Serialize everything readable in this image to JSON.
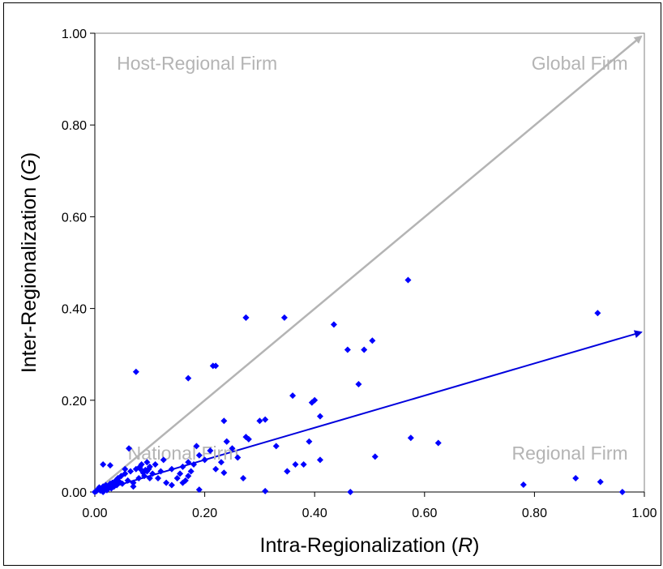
{
  "chart_data": {
    "type": "scatter",
    "title": "",
    "xlabel": {
      "prefix": "Intra-Regionalization (",
      "symbol": "R",
      "suffix": ")"
    },
    "ylabel": {
      "prefix": "Inter-Regionalization (",
      "symbol": "G",
      "suffix": ")"
    },
    "xlim": [
      0,
      1
    ],
    "ylim": [
      0,
      1
    ],
    "xticks": [
      "0.00",
      "0.20",
      "0.40",
      "0.60",
      "0.80",
      "1.00"
    ],
    "yticks": [
      "0.00",
      "0.20",
      "0.40",
      "0.60",
      "0.80",
      "1.00"
    ],
    "grid": false,
    "region_labels": {
      "host_regional": {
        "text": "Host-Regional Firm",
        "x": 0.04,
        "y": 0.935
      },
      "global": {
        "text": "Global Firm",
        "x": 0.97,
        "y": 0.935
      },
      "national": {
        "text": "National Firm",
        "x": 0.06,
        "y": 0.085
      },
      "regional": {
        "text": "Regional Firm",
        "x": 0.97,
        "y": 0.085
      }
    },
    "arrows": [
      {
        "name": "diagonal",
        "from": [
          0,
          0
        ],
        "to": [
          1,
          1
        ],
        "color": "#b4b4b4"
      },
      {
        "name": "trend",
        "from": [
          0,
          0
        ],
        "to": [
          1,
          0.35
        ],
        "color": "#0000dd"
      }
    ],
    "marker_color": "#0000ff",
    "series": [
      {
        "x": [
          0.0,
          0.003,
          0.005,
          0.008,
          0.01,
          0.012,
          0.015,
          0.018,
          0.02,
          0.022,
          0.025,
          0.028,
          0.03,
          0.032,
          0.035,
          0.038,
          0.04,
          0.042,
          0.045,
          0.048,
          0.05,
          0.055,
          0.06,
          0.065,
          0.07,
          0.075,
          0.08,
          0.082,
          0.085,
          0.088,
          0.09,
          0.092,
          0.095,
          0.098,
          0.1,
          0.105,
          0.11,
          0.115,
          0.12,
          0.125,
          0.13,
          0.14,
          0.15,
          0.155,
          0.16,
          0.165,
          0.17,
          0.175,
          0.18,
          0.185,
          0.19,
          0.2,
          0.21,
          0.22,
          0.23,
          0.24,
          0.25,
          0.26,
          0.27,
          0.275,
          0.28,
          0.3,
          0.31,
          0.33,
          0.35,
          0.36,
          0.38,
          0.39,
          0.4,
          0.41,
          0.435,
          0.46,
          0.48,
          0.49,
          0.505,
          0.51,
          0.57,
          0.575,
          0.625,
          0.78,
          0.875,
          0.915,
          0.92,
          0.96,
          0.015,
          0.028,
          0.055,
          0.062,
          0.075,
          0.083,
          0.095,
          0.17,
          0.215,
          0.22,
          0.235,
          0.235,
          0.275,
          0.275,
          0.345,
          0.35,
          0.365,
          0.395,
          0.41,
          0.015,
          0.04,
          0.07,
          0.1,
          0.14,
          0.16,
          0.17,
          0.19,
          0.24,
          0.31,
          0.465
        ],
        "y": [
          0.0,
          0.002,
          0.005,
          0.01,
          0.003,
          0.008,
          0.012,
          0.006,
          0.015,
          0.004,
          0.01,
          0.018,
          0.008,
          0.02,
          0.012,
          0.025,
          0.015,
          0.03,
          0.022,
          0.035,
          0.018,
          0.04,
          0.025,
          0.045,
          0.02,
          0.05,
          0.03,
          0.055,
          0.06,
          0.042,
          0.035,
          0.048,
          0.065,
          0.05,
          0.055,
          0.04,
          0.06,
          0.03,
          0.045,
          0.07,
          0.02,
          0.05,
          0.03,
          0.04,
          0.055,
          0.025,
          0.035,
          0.045,
          0.06,
          0.1,
          0.08,
          0.07,
          0.09,
          0.05,
          0.065,
          0.11,
          0.095,
          0.075,
          0.03,
          0.12,
          0.115,
          0.155,
          0.002,
          0.1,
          0.045,
          0.21,
          0.06,
          0.11,
          0.2,
          0.07,
          0.365,
          0.31,
          0.235,
          0.31,
          0.33,
          0.077,
          0.462,
          0.118,
          0.107,
          0.016,
          0.03,
          0.39,
          0.022,
          0.0,
          0.06,
          0.058,
          0.05,
          0.095,
          0.262,
          0.05,
          0.045,
          0.248,
          0.275,
          0.275,
          0.155,
          0.042,
          0.38,
          0.38,
          0.38,
          0.045,
          0.06,
          0.195,
          0.165,
          0.0,
          0.02,
          0.012,
          0.03,
          0.015,
          0.02,
          0.065,
          0.005,
          0.11,
          0.158,
          0.0
        ]
      }
    ]
  }
}
